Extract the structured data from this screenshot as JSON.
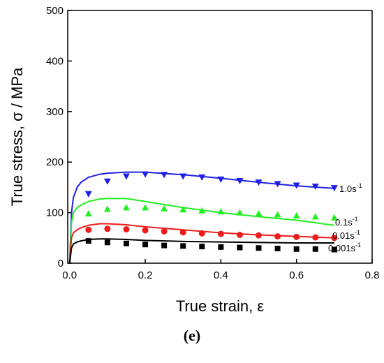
{
  "chart_data": {
    "type": "line",
    "xlabel": "True strain,  ε",
    "ylabel": "True stress, σ / MPa",
    "caption": "(e)",
    "xlim": [
      -0.005,
      0.8
    ],
    "ylim": [
      0,
      500
    ],
    "xticks": [
      {
        "value": 0,
        "label": "0.0"
      },
      0.2,
      0.4,
      0.6,
      0.8
    ],
    "yticks": [
      0,
      100,
      200,
      300,
      400,
      500
    ],
    "x": [
      0,
      0.005,
      0.01,
      0.02,
      0.03,
      0.05,
      0.08,
      0.1,
      0.15,
      0.2,
      0.3,
      0.4,
      0.5,
      0.6,
      0.7
    ],
    "marker_x": [
      0.05,
      0.1,
      0.15,
      0.2,
      0.25,
      0.3,
      0.35,
      0.4,
      0.45,
      0.5,
      0.55,
      0.6,
      0.65,
      0.7
    ],
    "series": [
      {
        "label_base": "1.0s",
        "label_sup": "-1",
        "color": "#1f1fe6",
        "marker": "triangle-down",
        "values": [
          0,
          100,
          130,
          150,
          160,
          170,
          176,
          178,
          180,
          180,
          175,
          168,
          160,
          153,
          148
        ],
        "marker_values": [
          137,
          162,
          172,
          176,
          175,
          172,
          170,
          166,
          163,
          160,
          157,
          154,
          152,
          149
        ]
      },
      {
        "label_base": "0.1s",
        "label_sup": "-1",
        "color": "#22ee22",
        "marker": "triangle-up",
        "values": [
          0,
          80,
          100,
          110,
          115,
          122,
          127,
          128,
          128,
          122,
          110,
          100,
          92,
          85,
          75
        ],
        "marker_values": [
          98,
          107,
          110,
          110,
          108,
          106,
          104,
          102,
          100,
          98,
          96,
          94,
          92,
          90
        ]
      },
      {
        "label_base": "0.01s",
        "label_sup": "-1",
        "color": "#ee1c1c",
        "marker": "circle",
        "values": [
          0,
          50,
          60,
          66,
          70,
          75,
          78,
          78,
          76,
          72,
          66,
          60,
          56,
          53,
          50
        ],
        "marker_values": [
          66,
          68,
          67,
          65,
          63,
          61,
          59,
          58,
          56,
          55,
          53,
          52,
          51,
          50
        ]
      },
      {
        "label_base": "0.001s",
        "label_sup": "-1",
        "color": "#000000",
        "marker": "square",
        "values": [
          0,
          30,
          38,
          42,
          44,
          47,
          48,
          48,
          47,
          45,
          43,
          42,
          41,
          40,
          40
        ],
        "marker_values": [
          44,
          41,
          39,
          37,
          35,
          34,
          33,
          32,
          31,
          30,
          29,
          28,
          28,
          27
        ]
      }
    ]
  }
}
